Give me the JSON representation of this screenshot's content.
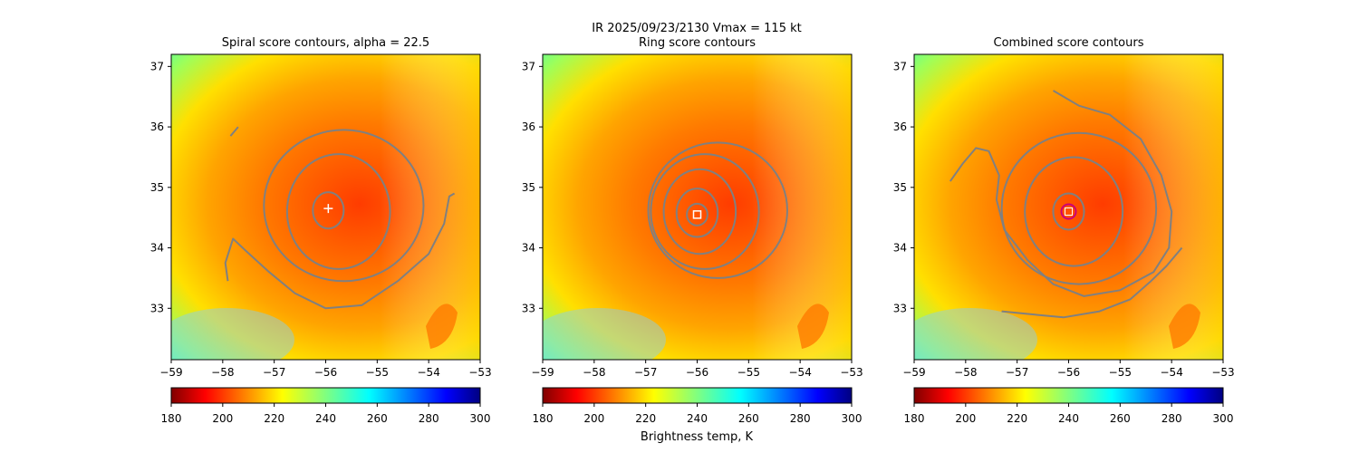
{
  "figure": {
    "suptitle": "IR  2025/09/23/2130    Vmax = 115 kt",
    "colorbar_label": "Brightness temp, K"
  },
  "colorbar": {
    "range": [
      180,
      300
    ],
    "ticks": [
      "180",
      "200",
      "220",
      "240",
      "260",
      "280",
      "300"
    ],
    "colormap": "jet_r"
  },
  "chart_data": [
    {
      "type": "heatmap",
      "title": "Spiral score contours, alpha = 22.5",
      "xlim": [
        -59,
        -53
      ],
      "ylim": [
        32.15,
        37.2
      ],
      "xticks": [
        "−59",
        "−58",
        "−57",
        "−56",
        "−55",
        "−54",
        "−53"
      ],
      "yticks": [
        "33",
        "34",
        "35",
        "36",
        "37"
      ],
      "center": {
        "lon": -56.0,
        "lat": 34.6
      },
      "marker": {
        "symbol": "+",
        "lon": -55.95,
        "lat": 34.65,
        "color": "#ffffff"
      },
      "contours": [
        {
          "type": "ring",
          "cx": -55.95,
          "cy": 34.62,
          "rx": 0.3,
          "ry": 0.3
        },
        {
          "type": "ring",
          "cx": -55.75,
          "cy": 34.6,
          "rx": 1.0,
          "ry": 0.95
        },
        {
          "type": "ring",
          "cx": -55.65,
          "cy": 34.7,
          "rx": 1.55,
          "ry": 1.25
        },
        {
          "type": "path",
          "points": [
            [
              -57.9,
              33.45
            ],
            [
              -57.95,
              33.75
            ],
            [
              -57.8,
              34.15
            ],
            [
              -57.55,
              33.95
            ],
            [
              -57.1,
              33.6
            ],
            [
              -56.6,
              33.25
            ],
            [
              -56.0,
              33.0
            ],
            [
              -55.3,
              33.05
            ],
            [
              -54.6,
              33.45
            ],
            [
              -54.0,
              33.9
            ],
            [
              -53.7,
              34.4
            ],
            [
              -53.6,
              34.85
            ],
            [
              -53.5,
              34.9
            ]
          ]
        },
        {
          "type": "path",
          "points": [
            [
              -57.85,
              35.85
            ],
            [
              -57.7,
              36.0
            ]
          ]
        }
      ]
    },
    {
      "type": "heatmap",
      "title": "Ring score contours",
      "xlim": [
        -59,
        -53
      ],
      "ylim": [
        32.15,
        37.2
      ],
      "xticks": [
        "−59",
        "−58",
        "−57",
        "−56",
        "−55",
        "−54",
        "−53"
      ],
      "yticks": [
        "33",
        "34",
        "35",
        "36",
        "37"
      ],
      "center": {
        "lon": -56.0,
        "lat": 34.6
      },
      "marker": {
        "symbol": "square",
        "lon": -56.0,
        "lat": 34.55,
        "color": "#ffffff"
      },
      "contours": [
        {
          "type": "ring",
          "cx": -56.0,
          "cy": 34.55,
          "rx": 0.2,
          "ry": 0.18
        },
        {
          "type": "ring",
          "cx": -56.0,
          "cy": 34.58,
          "rx": 0.4,
          "ry": 0.4
        },
        {
          "type": "ring",
          "cx": -55.95,
          "cy": 34.6,
          "rx": 0.7,
          "ry": 0.7
        },
        {
          "type": "ring",
          "cx": -55.85,
          "cy": 34.6,
          "rx": 1.05,
          "ry": 0.95
        },
        {
          "type": "ring",
          "cx": -55.6,
          "cy": 34.62,
          "rx": 1.35,
          "ry": 1.12
        }
      ]
    },
    {
      "type": "heatmap",
      "title": "Combined score contours",
      "xlim": [
        -59,
        -53
      ],
      "ylim": [
        32.15,
        37.2
      ],
      "xticks": [
        "−59",
        "−58",
        "−57",
        "−56",
        "−55",
        "−54",
        "−53"
      ],
      "yticks": [
        "33",
        "34",
        "35",
        "36",
        "37"
      ],
      "center": {
        "lon": -56.0,
        "lat": 34.6
      },
      "marker": {
        "symbol": "circle",
        "lon": -56.0,
        "lat": 34.6,
        "color": "#cc0077"
      },
      "contours": [
        {
          "type": "ring",
          "cx": -56.0,
          "cy": 34.6,
          "rx": 0.3,
          "ry": 0.3
        },
        {
          "type": "ring",
          "cx": -55.9,
          "cy": 34.6,
          "rx": 0.95,
          "ry": 0.9
        },
        {
          "type": "ring",
          "cx": -55.8,
          "cy": 34.65,
          "rx": 1.5,
          "ry": 1.25
        },
        {
          "type": "path",
          "points": [
            [
              -56.3,
              36.6
            ],
            [
              -55.8,
              36.35
            ],
            [
              -55.2,
              36.2
            ],
            [
              -54.6,
              35.8
            ],
            [
              -54.2,
              35.2
            ],
            [
              -54.0,
              34.6
            ],
            [
              -54.05,
              34.0
            ],
            [
              -54.35,
              33.6
            ],
            [
              -55.0,
              33.3
            ],
            [
              -55.7,
              33.2
            ],
            [
              -56.3,
              33.4
            ],
            [
              -56.8,
              33.8
            ],
            [
              -57.25,
              34.3
            ],
            [
              -57.4,
              34.8
            ],
            [
              -57.35,
              35.2
            ],
            [
              -57.55,
              35.6
            ],
            [
              -57.8,
              35.65
            ],
            [
              -58.05,
              35.4
            ],
            [
              -58.3,
              35.1
            ]
          ]
        },
        {
          "type": "path",
          "points": [
            [
              -57.3,
              32.95
            ],
            [
              -56.7,
              32.9
            ],
            [
              -56.1,
              32.85
            ],
            [
              -55.4,
              32.95
            ],
            [
              -54.8,
              33.15
            ],
            [
              -54.4,
              33.45
            ],
            [
              -54.1,
              33.7
            ],
            [
              -53.8,
              34.0
            ]
          ]
        }
      ]
    }
  ]
}
